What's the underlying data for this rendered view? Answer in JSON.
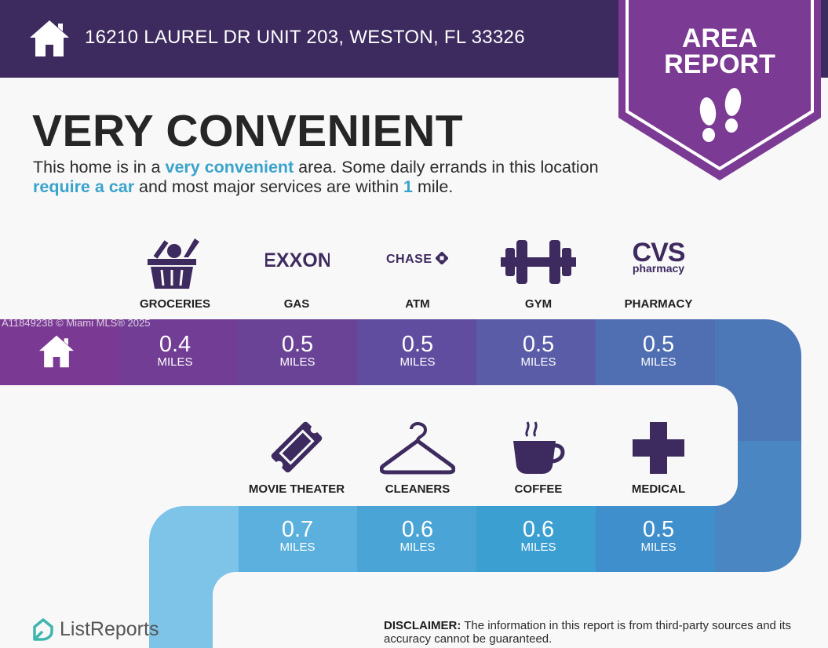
{
  "header": {
    "address": "16210 LAUREL DR UNIT 203, WESTON, FL 33326"
  },
  "badge": {
    "line1": "AREA",
    "line2": "REPORT"
  },
  "title": "VERY CONVENIENT",
  "intro": {
    "p1": "This home is in a ",
    "h1": "very convenient",
    "p2": " area. Some daily errands in this location ",
    "h2": "require a car",
    "p3": " and most major services are within ",
    "h3": "1",
    "p4": " mile."
  },
  "row1": [
    {
      "label": "GROCERIES",
      "value": "0.4",
      "unit": "MILES"
    },
    {
      "label": "GAS",
      "value": "0.5",
      "unit": "MILES"
    },
    {
      "label": "ATM",
      "value": "0.5",
      "unit": "MILES"
    },
    {
      "label": "GYM",
      "value": "0.5",
      "unit": "MILES"
    },
    {
      "label": "PHARMACY",
      "value": "0.5",
      "unit": "MILES"
    }
  ],
  "row2": [
    {
      "label": "MOVIE THEATER",
      "value": "0.7",
      "unit": "MILES"
    },
    {
      "label": "CLEANERS",
      "value": "0.6",
      "unit": "MILES"
    },
    {
      "label": "COFFEE",
      "value": "0.6",
      "unit": "MILES"
    },
    {
      "label": "MEDICAL",
      "value": "0.5",
      "unit": "MILES"
    }
  ],
  "logos": {
    "exxon": "EXXON",
    "chase": "CHASE",
    "cvs": "CVS",
    "pharmacy": "pharmacy"
  },
  "watermark": "A11849238 © Miami MLS® 2025",
  "footer": {
    "brand": "ListReports",
    "disclaimer_label": "DISCLAIMER:",
    "disclaimer_text": " The information in this report is from third-party sources and its accuracy cannot be guaranteed."
  },
  "colors": {
    "header": "#3d2a5f",
    "badge": "#7b3a93",
    "highlight": "#3aa3cc"
  },
  "icons": [
    "home-icon",
    "footsteps-icon",
    "grocery-basket-icon",
    "exxon-logo",
    "chase-logo",
    "dumbbell-icon",
    "cvs-logo",
    "movie-ticket-icon",
    "hanger-icon",
    "coffee-cup-icon",
    "medical-cross-icon",
    "listreports-logo-icon"
  ]
}
